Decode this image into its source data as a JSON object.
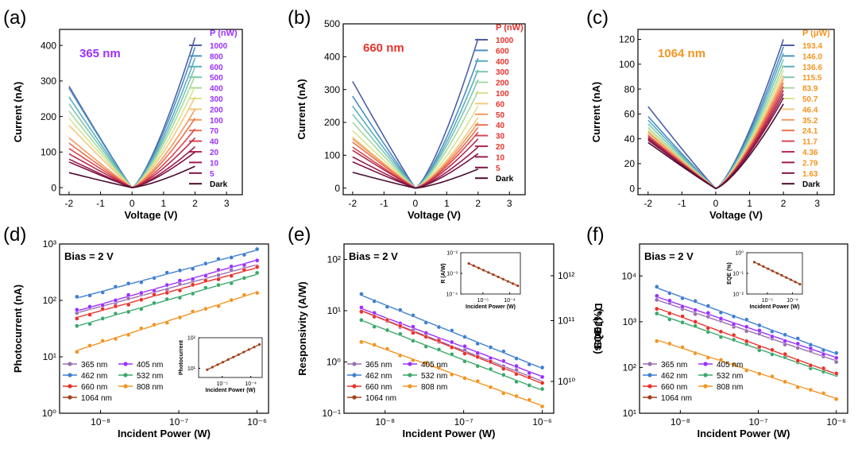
{
  "figure": {
    "panel_labels": [
      "(a)",
      "(b)",
      "(c)",
      "(d)",
      "(e)",
      "(f)"
    ]
  },
  "chart_data": [
    {
      "panel": "(a)",
      "type": "line",
      "annotation": "365 nm",
      "annotation_color": "#9b30ff",
      "xlabel": "Voltage (V)",
      "ylabel": "Current (nA)",
      "xlim": [
        -2.3,
        3.5
      ],
      "ylim": [
        -20,
        445
      ],
      "xticks": [
        -2,
        -1,
        0,
        1,
        2,
        3
      ],
      "xticklabels": [
        "-2",
        "-1",
        "0",
        "1",
        "2",
        "3"
      ],
      "yticks": [
        0,
        100,
        200,
        300,
        400
      ],
      "yticklabels": [
        "0",
        "100",
        "200",
        "300",
        "400"
      ],
      "legend_title": "P (nW)",
      "legend_title_color": "#9b30ff",
      "legend_label_color": "#9b30ff",
      "legend_position": "right",
      "series": [
        {
          "name": "1000",
          "color": "#4f5ea8",
          "left": 285,
          "right": 422
        },
        {
          "name": "800",
          "color": "#4a8fc4",
          "left": 280,
          "right": 395
        },
        {
          "name": "600",
          "color": "#5aaec0",
          "left": 255,
          "right": 365
        },
        {
          "name": "500",
          "color": "#7cc7b0",
          "left": 235,
          "right": 340
        },
        {
          "name": "400",
          "color": "#a6d9a0",
          "left": 215,
          "right": 315
        },
        {
          "name": "300",
          "color": "#d7e58f",
          "left": 195,
          "right": 285
        },
        {
          "name": "200",
          "color": "#f4c77d",
          "left": 175,
          "right": 255
        },
        {
          "name": "100",
          "color": "#f59a5f",
          "left": 140,
          "right": 220
        },
        {
          "name": "70",
          "color": "#ed6f4e",
          "left": 125,
          "right": 195
        },
        {
          "name": "40",
          "color": "#d9464f",
          "left": 110,
          "right": 165
        },
        {
          "name": "20",
          "color": "#b82a4e",
          "left": 95,
          "right": 140
        },
        {
          "name": "10",
          "color": "#9a1c4c",
          "left": 80,
          "right": 115
        },
        {
          "name": "5",
          "color": "#7c1445",
          "left": 72,
          "right": 100
        },
        {
          "name": "Dark",
          "color": "#4a0c2e",
          "left": 42,
          "right": 60
        }
      ]
    },
    {
      "panel": "(b)",
      "type": "line",
      "annotation": "660 nm",
      "annotation_color": "#e8322b",
      "xlabel": "Voltage (V)",
      "ylabel": "Current (nA)",
      "xlim": [
        -2.3,
        3.5
      ],
      "ylim": [
        -20,
        500
      ],
      "xticks": [
        -2,
        -1,
        0,
        1,
        2,
        3
      ],
      "xticklabels": [
        "-2",
        "-1",
        "0",
        "1",
        "2",
        "3"
      ],
      "yticks": [
        0,
        100,
        200,
        300,
        400,
        500
      ],
      "yticklabels": [
        "0",
        "100",
        "200",
        "300",
        "400",
        "500"
      ],
      "legend_title": "P (nW)",
      "legend_title_color": "#e8322b",
      "legend_label_color": "#e8322b",
      "legend_position": "right",
      "series": [
        {
          "name": "1000",
          "color": "#4f5ea8",
          "left": 325,
          "right": 455
        },
        {
          "name": "600",
          "color": "#4a8fc4",
          "left": 280,
          "right": 395
        },
        {
          "name": "400",
          "color": "#5aaec0",
          "left": 250,
          "right": 360
        },
        {
          "name": "300",
          "color": "#7cc7b0",
          "left": 225,
          "right": 330
        },
        {
          "name": "200",
          "color": "#a6d9a0",
          "left": 200,
          "right": 295
        },
        {
          "name": "100",
          "color": "#d7e58f",
          "left": 175,
          "right": 250
        },
        {
          "name": "60",
          "color": "#f4c77d",
          "left": 155,
          "right": 215
        },
        {
          "name": "50",
          "color": "#f59a5f",
          "left": 150,
          "right": 200
        },
        {
          "name": "40",
          "color": "#ed6f4e",
          "left": 140,
          "right": 185
        },
        {
          "name": "30",
          "color": "#d9464f",
          "left": 125,
          "right": 170
        },
        {
          "name": "20",
          "color": "#b82a4e",
          "left": 115,
          "right": 150
        },
        {
          "name": "10",
          "color": "#9a1c4c",
          "left": 95,
          "right": 125
        },
        {
          "name": "5",
          "color": "#7c1445",
          "left": 80,
          "right": 105
        },
        {
          "name": "Dark",
          "color": "#4a0c2e",
          "left": 48,
          "right": 58
        }
      ]
    },
    {
      "panel": "(c)",
      "type": "line",
      "annotation": "1064 nm",
      "annotation_color": "#f39422",
      "xlabel": "Voltage (V)",
      "ylabel": "Current (nA)",
      "xlim": [
        -2.3,
        3.5
      ],
      "ylim": [
        -5,
        128
      ],
      "xticks": [
        -2,
        -1,
        0,
        1,
        2,
        3
      ],
      "xticklabels": [
        "-2",
        "-1",
        "0",
        "1",
        "2",
        "3"
      ],
      "yticks": [
        0,
        20,
        40,
        60,
        80,
        100,
        120
      ],
      "yticklabels": [
        "0",
        "20",
        "40",
        "60",
        "80",
        "100",
        "120"
      ],
      "legend_title": "P (μW)",
      "legend_title_color": "#f39422",
      "legend_label_color": "#f39422",
      "legend_position": "right",
      "series": [
        {
          "name": "193.4",
          "color": "#4f5ea8",
          "left": 66,
          "right": 120
        },
        {
          "name": "146.0",
          "color": "#4a8fc4",
          "left": 58,
          "right": 114
        },
        {
          "name": "136.6",
          "color": "#5aaec0",
          "left": 55,
          "right": 109
        },
        {
          "name": "115.5",
          "color": "#7cc7b0",
          "left": 52,
          "right": 104
        },
        {
          "name": "83.9",
          "color": "#a6d9a0",
          "left": 49,
          "right": 99
        },
        {
          "name": "50.7",
          "color": "#d7e58f",
          "left": 47,
          "right": 95
        },
        {
          "name": "46.4",
          "color": "#f4c77d",
          "left": 46,
          "right": 91
        },
        {
          "name": "35.2",
          "color": "#f59a5f",
          "left": 45,
          "right": 88
        },
        {
          "name": "24.1",
          "color": "#ed6f4e",
          "left": 43,
          "right": 85
        },
        {
          "name": "11.7",
          "color": "#d9464f",
          "left": 42,
          "right": 82
        },
        {
          "name": "4.36",
          "color": "#b82a4e",
          "left": 41,
          "right": 79
        },
        {
          "name": "2.79",
          "color": "#9a1c4c",
          "left": 40,
          "right": 76
        },
        {
          "name": "1.63",
          "color": "#7c1445",
          "left": 39,
          "right": 73
        },
        {
          "name": "Dark",
          "color": "#4a0c2e",
          "left": 37,
          "right": 68
        }
      ]
    },
    {
      "panel": "(d)",
      "type": "scatter",
      "annotation": "Bias = 2 V",
      "xlabel": "Incident Power (W)",
      "ylabel": "Photocurrent (nA)",
      "xscale": "log",
      "yscale": "log",
      "xlim": [
        3e-09,
        1.4e-06
      ],
      "ylim": [
        1,
        1000
      ],
      "xticks": [
        1e-08,
        1e-07,
        1e-06
      ],
      "xticklabels": [
        "10⁻⁸",
        "10⁻⁷",
        "10⁻⁶"
      ],
      "yticks": [
        1,
        10,
        100,
        1000
      ],
      "yticklabels": [
        "10⁰",
        "10¹",
        "10²",
        "10³"
      ],
      "legend_position": "bottom-left",
      "series": [
        {
          "name": "365 nm",
          "color": "#9a6fb0",
          "x_range": [
            5e-09,
            1e-06
          ],
          "y_start": 60,
          "y_end": 430
        },
        {
          "name": "405 nm",
          "color": "#9b30ff",
          "x_range": [
            5e-09,
            1e-06
          ],
          "y_start": 65,
          "y_end": 520
        },
        {
          "name": "462 nm",
          "color": "#3f7fd0",
          "x_range": [
            5e-09,
            1e-06
          ],
          "y_start": 110,
          "y_end": 780
        },
        {
          "name": "532 nm",
          "color": "#3aa86a",
          "x_range": [
            5e-09,
            1e-06
          ],
          "y_start": 35,
          "y_end": 290
        },
        {
          "name": "660 nm",
          "color": "#e8322b",
          "x_range": [
            5e-09,
            1e-06
          ],
          "y_start": 50,
          "y_end": 380
        },
        {
          "name": "808 nm",
          "color": "#f39422",
          "x_range": [
            5e-09,
            1e-06
          ],
          "y_start": 13,
          "y_end": 140
        },
        {
          "name": "1064 nm",
          "color": "#a0401a",
          "x_range": [
            5e-09,
            1e-06
          ],
          "y_start": null,
          "y_end": null
        }
      ],
      "inset": {
        "xlabel": "Incident Power (W)",
        "ylabel": "Photocurrent",
        "xscale": "log",
        "yscale": "log",
        "xlim": [
          1.5e-06,
          0.00025
        ],
        "ylim": [
          5,
          100
        ],
        "xticks": [
          1e-05,
          0.0001
        ],
        "xticklabels": [
          "10⁻⁵",
          "10⁻⁴"
        ],
        "yticks": [
          10,
          100
        ],
        "yticklabels": [
          "10¹",
          "10²"
        ],
        "series": {
          "name": "1064 nm",
          "color": "#a0401a",
          "x_range": [
            3e-06,
            0.0002
          ],
          "y_start": 9,
          "y_end": 60
        }
      }
    },
    {
      "panel": "(e)",
      "type": "scatter",
      "annotation": "Bias = 2 V",
      "xlabel": "Incident Power (W)",
      "ylabel": "Responsivity (A/W)",
      "y2label": "D* (Jones)",
      "xscale": "log",
      "yscale": "log",
      "xlim": [
        3e-09,
        1.4e-06
      ],
      "ylim": [
        0.1,
        200
      ],
      "xticks": [
        1e-08,
        1e-07,
        1e-06
      ],
      "xticklabels": [
        "10⁻⁸",
        "10⁻⁷",
        "10⁻⁶"
      ],
      "yticks": [
        0.1,
        1,
        10,
        100
      ],
      "yticklabels": [
        "10⁻¹",
        "10⁰",
        "10¹",
        "10²"
      ],
      "y2ticks": [
        10000000000.0,
        100000000000.0,
        1000000000000.0
      ],
      "y2ticklabels": [
        "10¹⁰",
        "10¹¹",
        "10¹²"
      ],
      "legend_position": "bottom-left",
      "series": [
        {
          "name": "365 nm",
          "color": "#9a6fb0",
          "x_range": [
            5e-09,
            1e-06
          ],
          "y_start": 10,
          "y_end": 0.42
        },
        {
          "name": "405 nm",
          "color": "#9b30ff",
          "x_range": [
            5e-09,
            1e-06
          ],
          "y_start": 11,
          "y_end": 0.52
        },
        {
          "name": "462 nm",
          "color": "#3f7fd0",
          "x_range": [
            5e-09,
            1e-06
          ],
          "y_start": 20,
          "y_end": 0.75
        },
        {
          "name": "532 nm",
          "color": "#3aa86a",
          "x_range": [
            5e-09,
            1e-06
          ],
          "y_start": 6.5,
          "y_end": 0.28
        },
        {
          "name": "660 nm",
          "color": "#e8322b",
          "x_range": [
            5e-09,
            1e-06
          ],
          "y_start": 10,
          "y_end": 0.38
        },
        {
          "name": "808 nm",
          "color": "#f39422",
          "x_range": [
            5e-09,
            1e-06
          ],
          "y_start": 2.6,
          "y_end": 0.14
        },
        {
          "name": "1064 nm",
          "color": "#a0401a",
          "x_range": [
            5e-09,
            1e-06
          ],
          "y_start": null,
          "y_end": null
        }
      ],
      "inset": {
        "xlabel": "Incident Power (W)",
        "ylabel": "R (A/W)",
        "y2label": "D* (Jones)",
        "xscale": "log",
        "yscale": "log",
        "xlim": [
          1.5e-06,
          0.00025
        ],
        "ylim": [
          0.0001,
          0.01
        ],
        "xticks": [
          1e-05,
          0.0001
        ],
        "xticklabels": [
          "10⁻⁵",
          "10⁻⁴"
        ],
        "yticks": [
          0.0001,
          0.001,
          0.01
        ],
        "yticklabels": [
          "10⁻⁴",
          "10⁻³",
          "10⁻²"
        ],
        "y2ticklabels": [
          "10⁷",
          "10⁸"
        ],
        "series": {
          "name": "1064 nm",
          "color": "#a0401a",
          "x_range": [
            3e-06,
            0.0002
          ],
          "y_start": 0.003,
          "y_end": 0.00025
        }
      }
    },
    {
      "panel": "(f)",
      "type": "scatter",
      "annotation": "Bias = 2 V",
      "xlabel": "Incident Power (W)",
      "ylabel": "EQE (%)",
      "xscale": "log",
      "yscale": "log",
      "xlim": [
        3e-09,
        1.4e-06
      ],
      "ylim": [
        10,
        50000
      ],
      "xticks": [
        1e-08,
        1e-07,
        1e-06
      ],
      "xticklabels": [
        "10⁻⁸",
        "10⁻⁷",
        "10⁻⁶"
      ],
      "yticks": [
        10,
        100,
        1000,
        10000
      ],
      "yticklabels": [
        "10¹",
        "10²",
        "10³",
        "10⁴"
      ],
      "legend_position": "bottom-left",
      "series": [
        {
          "name": "365 nm",
          "color": "#9a6fb0",
          "x_range": [
            5e-09,
            1e-06
          ],
          "y_start": 3000,
          "y_end": 140
        },
        {
          "name": "405 nm",
          "color": "#9b30ff",
          "x_range": [
            5e-09,
            1e-06
          ],
          "y_start": 3500,
          "y_end": 165
        },
        {
          "name": "462 nm",
          "color": "#3f7fd0",
          "x_range": [
            5e-09,
            1e-06
          ],
          "y_start": 5500,
          "y_end": 200
        },
        {
          "name": "532 nm",
          "color": "#3aa86a",
          "x_range": [
            5e-09,
            1e-06
          ],
          "y_start": 1500,
          "y_end": 65
        },
        {
          "name": "660 nm",
          "color": "#e8322b",
          "x_range": [
            5e-09,
            1e-06
          ],
          "y_start": 2000,
          "y_end": 72
        },
        {
          "name": "808 nm",
          "color": "#f39422",
          "x_range": [
            5e-09,
            1e-06
          ],
          "y_start": 400,
          "y_end": 21
        },
        {
          "name": "1064 nm",
          "color": "#a0401a",
          "x_range": [
            5e-09,
            1e-06
          ],
          "y_start": null,
          "y_end": null
        }
      ],
      "inset": {
        "xlabel": "Incident Power (W)",
        "ylabel": "EQE (%)",
        "xscale": "log",
        "yscale": "log",
        "xlim": [
          1.5e-06,
          0.00025
        ],
        "ylim": [
          0.01,
          1
        ],
        "xticks": [
          1e-05,
          0.0001
        ],
        "xticklabels": [
          "10⁻⁵",
          "10⁻⁴"
        ],
        "yticks": [
          0.01,
          0.1,
          1
        ],
        "yticklabels": [
          "10⁻²",
          "10⁻¹",
          "10⁰"
        ],
        "series": {
          "name": "1064 nm",
          "color": "#a0401a",
          "x_range": [
            3e-06,
            0.0002
          ],
          "y_start": 0.35,
          "y_end": 0.03
        }
      }
    }
  ]
}
